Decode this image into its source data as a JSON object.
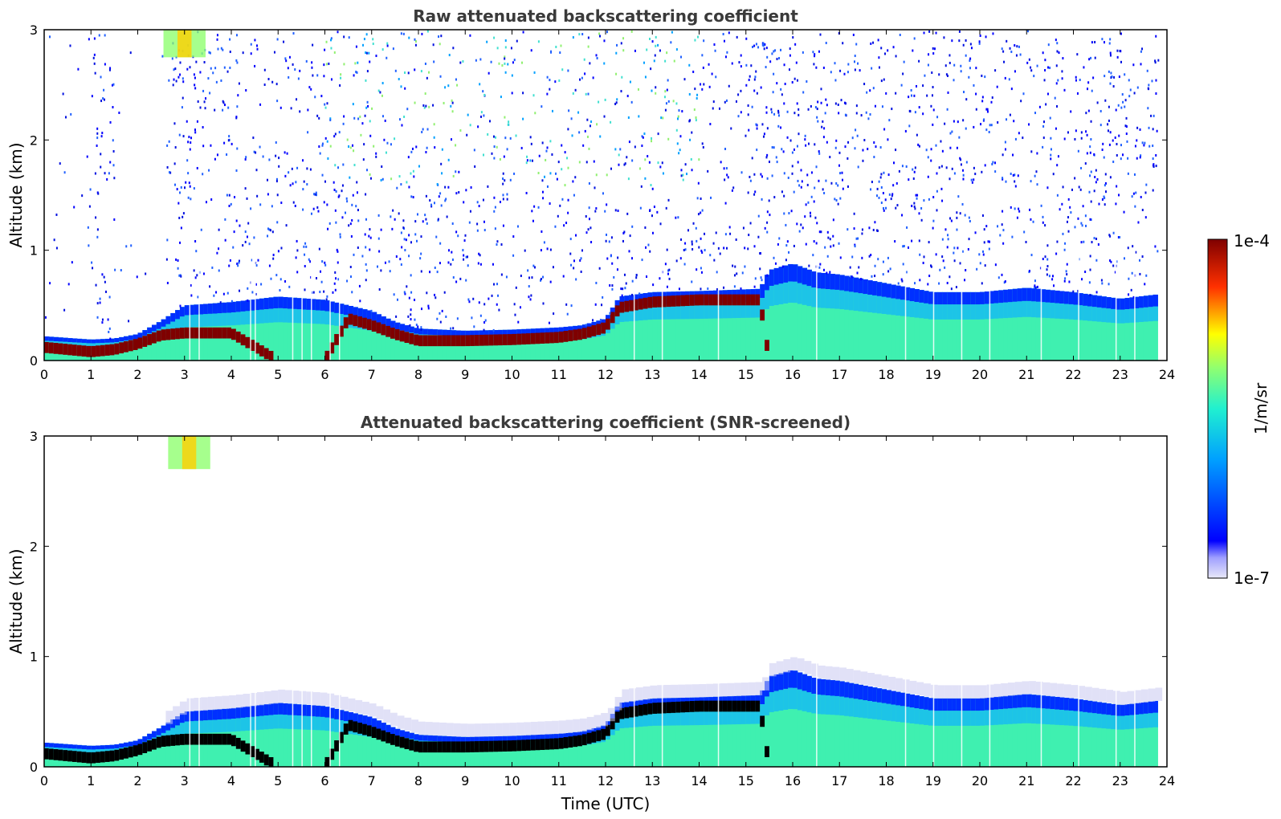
{
  "chart_data": [
    {
      "type": "heatmap",
      "title": "Raw attenuated backscattering coefficient",
      "xlabel": "",
      "ylabel": "Altitude (km)",
      "xlim": [
        0,
        24
      ],
      "ylim": [
        0,
        3
      ],
      "x_ticks": [
        "0",
        "1",
        "2",
        "3",
        "4",
        "5",
        "6",
        "7",
        "8",
        "9",
        "10",
        "11",
        "12",
        "13",
        "14",
        "15",
        "16",
        "17",
        "18",
        "19",
        "20",
        "21",
        "22",
        "23",
        "24"
      ],
      "y_ticks": [
        "0",
        "1",
        "2",
        "3"
      ],
      "data_end_hour": 23.8,
      "noise_level": 0.35,
      "high_signal_aloft": {
        "hours": [
          2.55,
          3.45
        ],
        "altitude_km": [
          2.75,
          3.0
        ]
      },
      "boundary_layer": [
        {
          "t": 0.0,
          "top_km": 0.22,
          "peak_km": 0.12
        },
        {
          "t": 1.0,
          "top_km": 0.19,
          "peak_km": 0.08
        },
        {
          "t": 1.5,
          "top_km": 0.2,
          "peak_km": 0.1
        },
        {
          "t": 2.0,
          "top_km": 0.24,
          "peak_km": 0.15
        },
        {
          "t": 2.5,
          "top_km": 0.36,
          "peak_km": 0.23
        },
        {
          "t": 3.0,
          "top_km": 0.5,
          "peak_km": 0.25
        },
        {
          "t": 4.0,
          "top_km": 0.53,
          "peak_km": 0.25
        },
        {
          "t": 5.0,
          "top_km": 0.58,
          "peak_km": 0.0
        },
        {
          "t": 6.0,
          "top_km": 0.55,
          "peak_km": 0.0
        },
        {
          "t": 6.5,
          "top_km": 0.5,
          "peak_km": 0.38
        },
        {
          "t": 7.0,
          "top_km": 0.45,
          "peak_km": 0.32
        },
        {
          "t": 7.5,
          "top_km": 0.35,
          "peak_km": 0.24
        },
        {
          "t": 8.0,
          "top_km": 0.29,
          "peak_km": 0.18
        },
        {
          "t": 9.0,
          "top_km": 0.27,
          "peak_km": 0.18
        },
        {
          "t": 10.0,
          "top_km": 0.28,
          "peak_km": 0.19
        },
        {
          "t": 11.0,
          "top_km": 0.3,
          "peak_km": 0.21
        },
        {
          "t": 11.5,
          "top_km": 0.32,
          "peak_km": 0.24
        },
        {
          "t": 12.0,
          "top_km": 0.38,
          "peak_km": 0.3
        },
        {
          "t": 12.3,
          "top_km": 0.58,
          "peak_km": 0.48
        },
        {
          "t": 13.0,
          "top_km": 0.62,
          "peak_km": 0.53
        },
        {
          "t": 14.0,
          "top_km": 0.63,
          "peak_km": 0.55
        },
        {
          "t": 15.3,
          "top_km": 0.65,
          "peak_km": 0.55
        },
        {
          "t": 15.5,
          "top_km": 0.82,
          "peak_km": 0.0
        },
        {
          "t": 16.0,
          "top_km": 0.88,
          "peak_km": 0.0
        },
        {
          "t": 16.5,
          "top_km": 0.8,
          "peak_km": 0.0
        },
        {
          "t": 17.0,
          "top_km": 0.78,
          "peak_km": 0.0
        },
        {
          "t": 18.0,
          "top_km": 0.7,
          "peak_km": 0.0
        },
        {
          "t": 19.0,
          "top_km": 0.62,
          "peak_km": 0.0
        },
        {
          "t": 20.0,
          "top_km": 0.62,
          "peak_km": 0.0
        },
        {
          "t": 21.0,
          "top_km": 0.66,
          "peak_km": 0.0
        },
        {
          "t": 22.0,
          "top_km": 0.62,
          "peak_km": 0.0
        },
        {
          "t": 23.0,
          "top_km": 0.56,
          "peak_km": 0.0
        },
        {
          "t": 23.8,
          "top_km": 0.6,
          "peak_km": 0.0
        }
      ]
    },
    {
      "type": "heatmap",
      "title": "Attenuated backscattering coefficient (SNR-screened)",
      "xlabel": "Time (UTC)",
      "ylabel": "Altitude (km)",
      "xlim": [
        0,
        24
      ],
      "ylim": [
        0,
        3
      ],
      "x_ticks": [
        "0",
        "1",
        "2",
        "3",
        "4",
        "5",
        "6",
        "7",
        "8",
        "9",
        "10",
        "11",
        "12",
        "13",
        "14",
        "15",
        "16",
        "17",
        "18",
        "19",
        "20",
        "21",
        "22",
        "23",
        "24"
      ],
      "y_ticks": [
        "0",
        "1",
        "2",
        "3"
      ],
      "data_end_hour": 23.8,
      "noise_level": 0.0,
      "high_signal_aloft": {
        "hours": [
          2.65,
          3.55
        ],
        "altitude_km": [
          2.7,
          3.0
        ]
      },
      "saturated_color": "#000000",
      "boundary_layer_same_as_raw": true
    }
  ],
  "colorbar": {
    "label": "1/m/sr",
    "max_label": "1e-4",
    "min_label": "1e-7",
    "colormap": "jet"
  },
  "colors": {
    "boundary_layer": "#3ff0b0",
    "peak": "#7f0000",
    "background": "#ffffff"
  }
}
